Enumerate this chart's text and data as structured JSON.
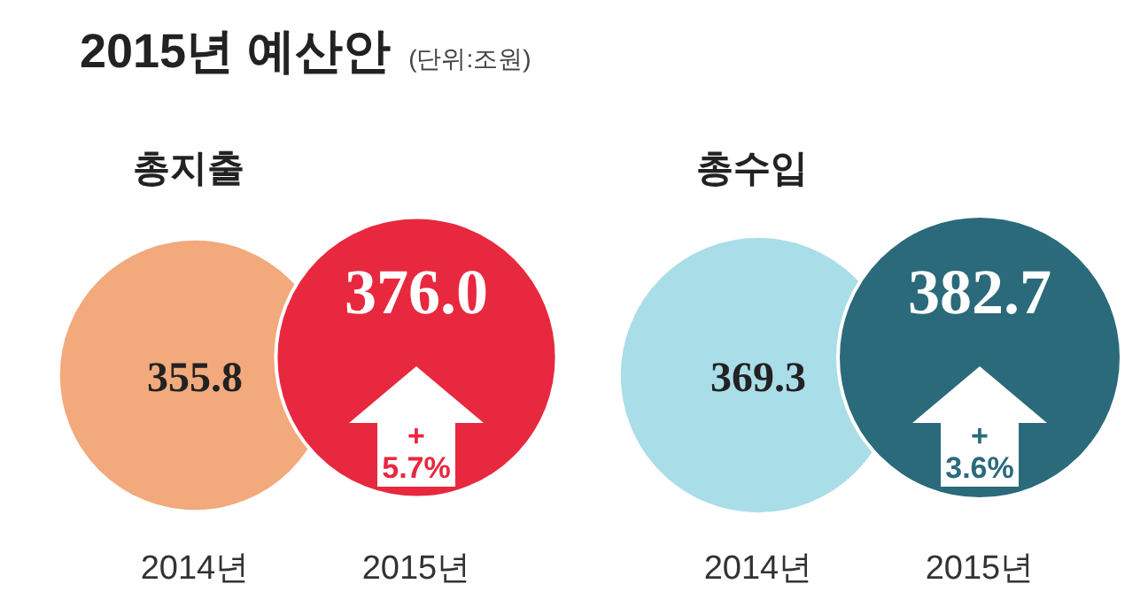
{
  "chart_data": [
    {
      "type": "other",
      "title": "2015년 예산안",
      "subtitle": "(단위:조원)",
      "categories": [
        "2014년",
        "2015년"
      ],
      "series": [
        {
          "name": "총지출",
          "values": [
            355.8,
            376.0
          ],
          "value_labels": [
            "355.8",
            "376.0"
          ],
          "colors": [
            "#f2a97c",
            "#e8283f"
          ]
        }
      ],
      "annotations": [
        "+ 5.7%"
      ]
    },
    {
      "type": "other",
      "categories": [
        "2014년",
        "2015년"
      ],
      "series": [
        {
          "name": "총수입",
          "values": [
            369.3,
            382.7
          ],
          "value_labels": [
            "369.3",
            "382.7"
          ],
          "colors": [
            "#a9dde8",
            "#2b6a7a"
          ]
        }
      ],
      "annotations": [
        "+ 3.6%"
      ]
    }
  ]
}
